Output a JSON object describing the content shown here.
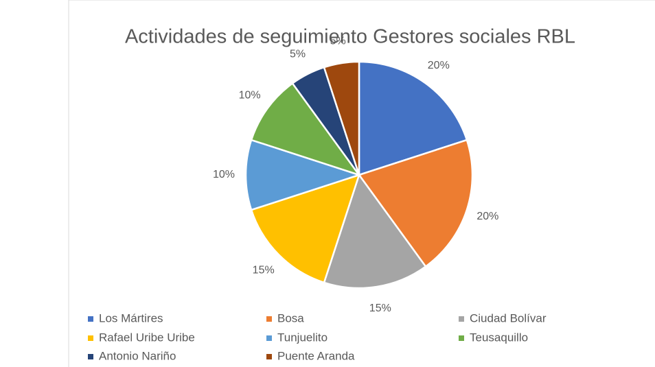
{
  "chart_data": {
    "type": "pie",
    "title": "Actividades de seguimiento Gestores sociales RBL",
    "categories": [
      "Los Mártires",
      "Bosa",
      "Ciudad Bolívar",
      "Rafael Uribe Uribe",
      "Tunjuelito",
      "Teusaquillo",
      "Antonio Nariño",
      "Puente Aranda"
    ],
    "values": [
      20,
      20,
      15,
      15,
      10,
      10,
      5,
      5
    ],
    "value_labels": [
      "20%",
      "20%",
      "15%",
      "15%",
      "10%",
      "10%",
      "5%",
      "5%"
    ],
    "colors": [
      "#4472c4",
      "#ed7d31",
      "#a5a5a5",
      "#ffc000",
      "#5b9bd5",
      "#70ad47",
      "#264478",
      "#9e480e"
    ],
    "legend": "bottom"
  }
}
